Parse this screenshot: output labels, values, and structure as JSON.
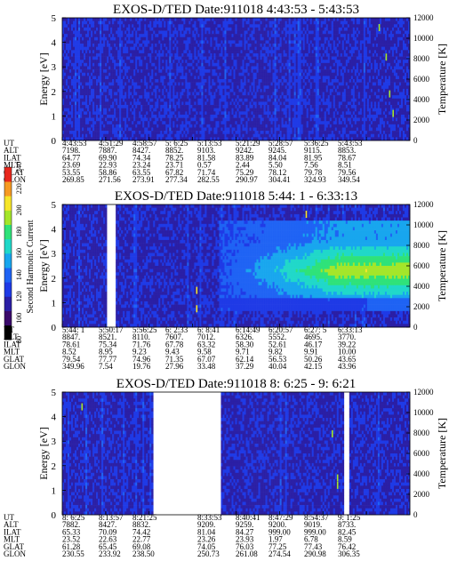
{
  "chart_data": [
    {
      "type": "heatmap",
      "title": "EXOS-D/TED   Date:911018  4:43:53 - 5:43:53",
      "ylabel": "Energy [eV]",
      "y2label": "Temperature [K]",
      "ylim": [
        0,
        5
      ],
      "y2lim": [
        0,
        12000
      ],
      "yticks": [
        "0",
        "1",
        "2",
        "3",
        "4",
        "5"
      ],
      "y2ticks": [
        "0",
        "2000",
        "4000",
        "6000",
        "8000",
        "10000",
        "12000"
      ],
      "gaps": [],
      "features": {
        "background_level": 0.22,
        "blob": null,
        "dots": [
          [
            0.91,
            4.6,
            0.7
          ],
          [
            0.93,
            3.4,
            0.7
          ],
          [
            0.94,
            1.9,
            0.7
          ],
          [
            0.95,
            1.1,
            0.7
          ]
        ]
      },
      "table": {
        "rows": [
          {
            "label": "UT",
            "values": [
              "4:43:53",
              "4:51:29",
              "4:58:57",
              "5: 6:25",
              "5:13:53",
              "5:21:29",
              "5:28:57",
              "5:36:25",
              "5:43:53"
            ]
          },
          {
            "label": "ALT",
            "values": [
              "7198.",
              "7887.",
              "8427.",
              "8852.",
              "9103.",
              "9242.",
              "9245.",
              "9115.",
              "8853."
            ]
          },
          {
            "label": "ILAT",
            "values": [
              "64.77",
              "69.90",
              "74.34",
              "78.25",
              "81.58",
              "83.89",
              "84.04",
              "81.95",
              "78.67"
            ]
          },
          {
            "label": "MLT",
            "values": [
              "23.69",
              "22.93",
              "23.24",
              "23.71",
              "0.57",
              "2.44",
              "5.50",
              "7.56",
              "8.51"
            ]
          },
          {
            "label": "GLAT",
            "values": [
              "53.55",
              "58.86",
              "63.55",
              "67.82",
              "71.74",
              "75.29",
              "78.12",
              "79.78",
              "79.56"
            ]
          },
          {
            "label": "GLON",
            "values": [
              "269.85",
              "271.56",
              "273.91",
              "277.34",
              "282.55",
              "290.97",
              "304.41",
              "324.93",
              "349.54"
            ]
          }
        ]
      }
    },
    {
      "type": "heatmap",
      "title": "EXOS-D/TED   Date:911018  5:44: 1 - 6:33:13",
      "ylabel": "Energy [eV]",
      "y2label": "Temperature [K]",
      "ylim": [
        0,
        5
      ],
      "y2lim": [
        0,
        12000
      ],
      "yticks": [
        "0",
        "1",
        "2",
        "3",
        "4",
        "5"
      ],
      "y2ticks": [
        "0",
        "2000",
        "4000",
        "6000",
        "8000",
        "10000",
        "12000"
      ],
      "gaps": [
        [
          0.13,
          0.155
        ]
      ],
      "features": {
        "background_level": 0.22,
        "blob": {
          "x0": 0.45,
          "ymin": 1.2,
          "ymax": 4.4,
          "center_y": 2.3
        },
        "dots": [
          [
            0.385,
            1.5,
            0.8
          ],
          [
            0.385,
            0.75,
            0.8
          ],
          [
            0.7,
            4.6,
            0.8
          ]
        ]
      },
      "table": {
        "rows": [
          {
            "label": "UT",
            "values": [
              "5:44: 1",
              "5:50:17",
              "5:56:25",
              "6: 2:33",
              "6: 8:41",
              "6:14:49",
              "6:20:57",
              "6:27: 5",
              "6:33:13"
            ]
          },
          {
            "label": "ALT",
            "values": [
              "8847.",
              "8521.",
              "8110.",
              "7607.",
              "7012.",
              "6326.",
              "5552.",
              "4695.",
              "3770."
            ]
          },
          {
            "label": "ILAT",
            "values": [
              "78.61",
              "75.34",
              "71.76",
              "67.78",
              "63.32",
              "58.30",
              "52.61",
              "46.17",
              "39.22"
            ]
          },
          {
            "label": "MLT",
            "values": [
              "8.52",
              "8.95",
              "9.23",
              "9.43",
              "9.58",
              "9.71",
              "9.82",
              "9.91",
              "10.00"
            ]
          },
          {
            "label": "GLAT",
            "values": [
              "79.54",
              "77.77",
              "74.96",
              "71.35",
              "67.07",
              "62.14",
              "56.53",
              "50.26",
              "43.65"
            ]
          },
          {
            "label": "GLON",
            "values": [
              "349.96",
              "7.54",
              "19.76",
              "27.96",
              "33.48",
              "37.29",
              "40.04",
              "42.15",
              "43.96"
            ]
          }
        ]
      }
    },
    {
      "type": "heatmap",
      "title": "EXOS-D/TED   Date:911018  8: 6:25 - 9: 6:21",
      "ylabel": "Energy [eV]",
      "y2label": "Temperature [K]",
      "ylim": [
        0,
        5
      ],
      "y2lim": [
        0,
        12000
      ],
      "yticks": [
        "0",
        "1",
        "2",
        "3",
        "4",
        "5"
      ],
      "y2ticks": [
        "0",
        "2000",
        "4000",
        "6000",
        "8000",
        "10000",
        "12000"
      ],
      "gaps": [
        [
          0.26,
          0.455
        ],
        [
          0.808,
          0.825
        ]
      ],
      "features": {
        "background_level": 0.22,
        "blob": null,
        "dots": [
          [
            0.055,
            4.4,
            0.7
          ],
          [
            0.775,
            3.3,
            0.7
          ],
          [
            0.79,
            1.5,
            0.7
          ],
          [
            0.79,
            1.2,
            0.7
          ]
        ]
      },
      "table": {
        "rows": [
          {
            "label": "UT",
            "values": [
              "8: 6:25",
              "8:13:57",
              "8:21:25",
              "",
              "8:33:53",
              "8:40:41",
              "8:47:29",
              "8:54:37",
              "9: 1:25"
            ]
          },
          {
            "label": "ALT",
            "values": [
              "7882.",
              "8427.",
              "8832.",
              "",
              "9209.",
              "9259.",
              "9200.",
              "9019.",
              "8733."
            ]
          },
          {
            "label": "ILAT",
            "values": [
              "65.33",
              "70.09",
              "74.42",
              "",
              "81.04",
              "84.27",
              "999.00",
              "999.00",
              "82.45"
            ]
          },
          {
            "label": "MLT",
            "values": [
              "23.52",
              "22.63",
              "22.77",
              "",
              "23.26",
              "23.93",
              "1.97",
              "6.78",
              "8.59"
            ]
          },
          {
            "label": "GLAT",
            "values": [
              "61.28",
              "65.45",
              "69.08",
              "",
              "74.05",
              "76.03",
              "77.25",
              "77.43",
              "76.42"
            ]
          },
          {
            "label": "GLON",
            "values": [
              "230.55",
              "233.92",
              "238.50",
              "",
              "250.73",
              "261.08",
              "274.54",
              "290.98",
              "306.35"
            ]
          }
        ]
      }
    }
  ],
  "colorbar": {
    "label": "Second Harmonic Current",
    "ticks": [
      "80",
      "100",
      "120",
      "140",
      "160",
      "180",
      "200",
      "220",
      "240"
    ],
    "colors": [
      "#000000",
      "#3a0a6b",
      "#2b1fa5",
      "#1f3ae6",
      "#1f63f4",
      "#18a6ee",
      "#20d8c9",
      "#2fe27a",
      "#a4e62a",
      "#f6e62a",
      "#f69a23",
      "#e8281d"
    ]
  }
}
